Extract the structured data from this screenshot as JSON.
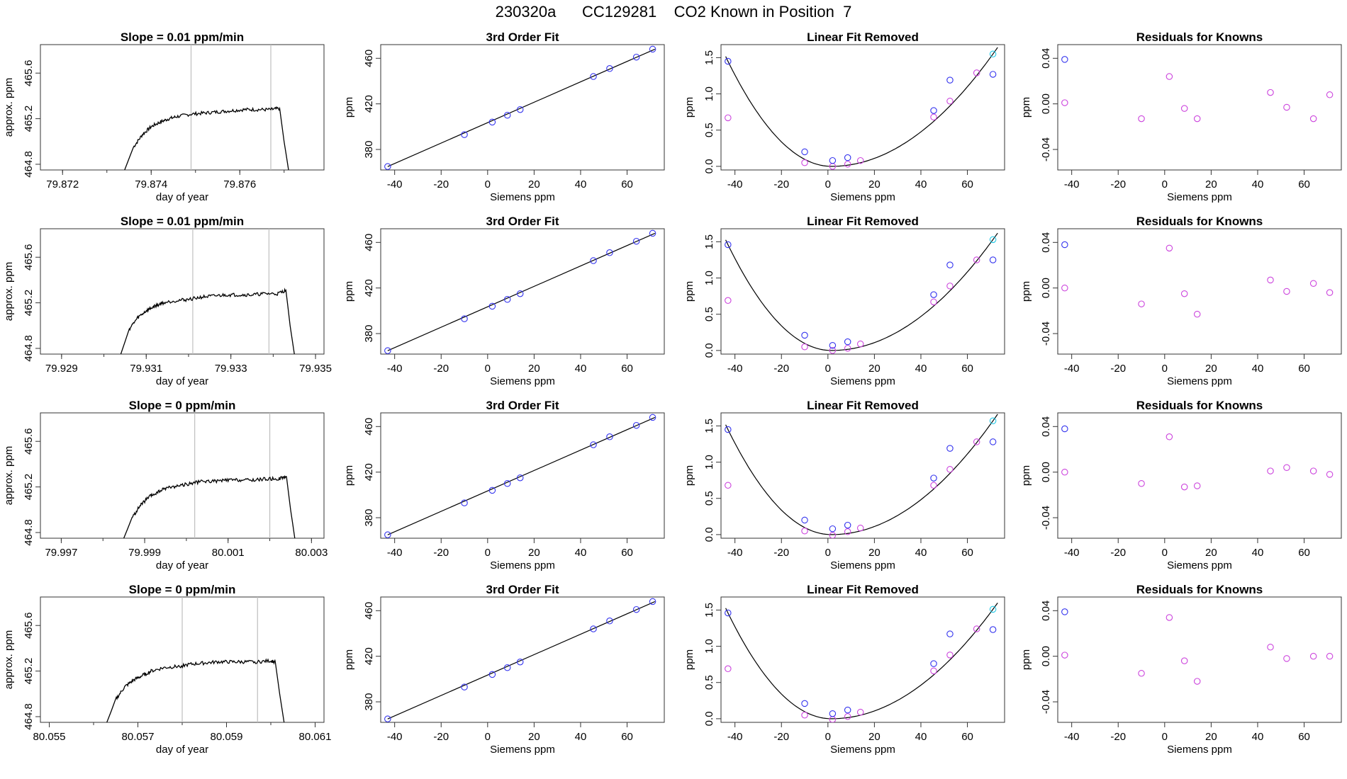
{
  "title": "230320a      CC129281    CO2 Known in Position  7",
  "colors": {
    "frame": "#333333",
    "curve": "#000000",
    "vline": "#bfbfbf",
    "blue": "#3333ee",
    "magenta": "#cc44dd",
    "cyan": "#22c8e6"
  },
  "chart_data": [
    {
      "type": "line",
      "title": "Slope =  0.01  ppm/min",
      "xlabel": "day of year",
      "ylabel": "approx. ppm",
      "xlim": [
        79.8715,
        79.8779
      ],
      "ylim": [
        464.75,
        465.85
      ],
      "xticks": [
        "79.872",
        "79.874",
        "79.876"
      ],
      "yticks": [
        "464.8",
        "465.2",
        "465.6"
      ],
      "vlines": [
        79.8749,
        79.8767
      ],
      "x": [
        79.8734,
        79.8736,
        79.8738,
        79.874,
        79.8742,
        79.8744,
        79.8746,
        79.8749,
        79.8752,
        79.8755,
        79.8758,
        79.8761,
        79.8764,
        79.8767,
        79.8769,
        79.877,
        79.8771
      ],
      "y": [
        464.75,
        464.95,
        465.06,
        465.13,
        465.17,
        465.2,
        465.22,
        465.24,
        465.25,
        465.26,
        465.27,
        465.28,
        465.28,
        465.28,
        465.29,
        465.0,
        464.75
      ]
    },
    {
      "type": "scatter",
      "title": "3rd Order Fit",
      "xlabel": "Siemens ppm",
      "ylabel": "ppm",
      "xlim": [
        -46,
        76
      ],
      "ylim": [
        362,
        472
      ],
      "xticks": [
        "-40",
        "-20",
        "0",
        "20",
        "40",
        "60"
      ],
      "yticks": [
        "380",
        "420",
        "460"
      ],
      "fit": [
        [
          -43,
          365
        ],
        [
          72,
          468
        ]
      ],
      "points": [
        [
          -43,
          365
        ],
        [
          -10,
          393
        ],
        [
          2,
          404
        ],
        [
          8.5,
          410
        ],
        [
          14,
          415
        ],
        [
          45.5,
          444
        ],
        [
          52.5,
          451
        ],
        [
          64,
          461
        ],
        [
          71,
          468
        ]
      ]
    },
    {
      "type": "scatter",
      "title": "Linear Fit Removed",
      "xlabel": "Siemens ppm",
      "ylabel": "ppm",
      "xlim": [
        -46,
        76
      ],
      "ylim": [
        -0.05,
        1.68
      ],
      "xticks": [
        "-40",
        "-20",
        "0",
        "20",
        "40",
        "60"
      ],
      "yticks": [
        "0.0",
        "0.5",
        "1.0",
        "1.5"
      ],
      "points_blue": [
        [
          -43,
          1.45
        ],
        [
          -10,
          0.2
        ],
        [
          2,
          0.08
        ],
        [
          8.5,
          0.12
        ],
        [
          45.5,
          0.77
        ],
        [
          52.5,
          1.19
        ],
        [
          71,
          1.27
        ]
      ],
      "points_magenta": [
        [
          -43,
          0.67
        ],
        [
          -10,
          0.05
        ],
        [
          2,
          0.0
        ],
        [
          8.5,
          0.03
        ],
        [
          14,
          0.08
        ],
        [
          45.5,
          0.68
        ],
        [
          52.5,
          0.9
        ],
        [
          64,
          1.29
        ]
      ],
      "points_cyan": [
        [
          71,
          1.55
        ]
      ]
    },
    {
      "type": "scatter",
      "title": "Residuals for Knowns",
      "xlabel": "Siemens ppm",
      "ylabel": "ppm",
      "xlim": [
        -46,
        76
      ],
      "ylim": [
        -0.058,
        0.052
      ],
      "xticks": [
        "-40",
        "-20",
        "0",
        "20",
        "40",
        "60"
      ],
      "yticks": [
        "-0.04",
        "0.00",
        "0.04"
      ],
      "points_blue": [
        [
          -43,
          0.039
        ]
      ],
      "points_magenta": [
        [
          -43,
          0.001
        ],
        [
          -10,
          -0.013
        ],
        [
          2,
          0.024
        ],
        [
          8.5,
          -0.004
        ],
        [
          14,
          -0.013
        ],
        [
          45.5,
          0.01
        ],
        [
          52.5,
          -0.003
        ],
        [
          64,
          -0.013
        ],
        [
          71,
          0.008
        ]
      ]
    },
    {
      "type": "line",
      "title": "Slope =  0.01  ppm/min",
      "xlabel": "day of year",
      "ylabel": "approx. ppm",
      "xlim": [
        79.9285,
        79.9352
      ],
      "ylim": [
        464.75,
        465.85
      ],
      "xticks": [
        "79.929",
        "79.931",
        "79.933",
        "79.935"
      ],
      "yticks": [
        "464.8",
        "465.2",
        "465.6"
      ],
      "vlines": [
        79.9321,
        79.9339
      ],
      "x": [
        79.9304,
        79.9306,
        79.9308,
        79.931,
        79.9312,
        79.9314,
        79.9317,
        79.932,
        79.9323,
        79.9326,
        79.9329,
        79.9332,
        79.9335,
        79.9338,
        79.9341,
        79.9343,
        79.9344,
        79.9345
      ],
      "y": [
        464.75,
        464.97,
        465.07,
        465.13,
        465.17,
        465.2,
        465.22,
        465.23,
        465.25,
        465.26,
        465.27,
        465.27,
        465.27,
        465.28,
        465.28,
        465.31,
        465.0,
        464.75
      ]
    },
    {
      "type": "scatter",
      "title": "3rd Order Fit",
      "xlabel": "Siemens ppm",
      "ylabel": "ppm",
      "xlim": [
        -46,
        76
      ],
      "ylim": [
        362,
        472
      ],
      "xticks": [
        "-40",
        "-20",
        "0",
        "20",
        "40",
        "60"
      ],
      "yticks": [
        "380",
        "420",
        "460"
      ],
      "fit": [
        [
          -43,
          365
        ],
        [
          72,
          468
        ]
      ],
      "points": [
        [
          -43,
          365
        ],
        [
          -10,
          393
        ],
        [
          2,
          404
        ],
        [
          8.5,
          410
        ],
        [
          14,
          415
        ],
        [
          45.5,
          444
        ],
        [
          52.5,
          451
        ],
        [
          64,
          461
        ],
        [
          71,
          468
        ]
      ]
    },
    {
      "type": "scatter",
      "title": "Linear Fit Removed",
      "xlabel": "Siemens ppm",
      "ylabel": "ppm",
      "xlim": [
        -46,
        76
      ],
      "ylim": [
        -0.05,
        1.68
      ],
      "xticks": [
        "-40",
        "-20",
        "0",
        "20",
        "40",
        "60"
      ],
      "yticks": [
        "0.0",
        "0.5",
        "1.0",
        "1.5"
      ],
      "points_blue": [
        [
          -43,
          1.46
        ],
        [
          -10,
          0.21
        ],
        [
          2,
          0.07
        ],
        [
          8.5,
          0.12
        ],
        [
          45.5,
          0.77
        ],
        [
          52.5,
          1.18
        ],
        [
          71,
          1.25
        ]
      ],
      "points_magenta": [
        [
          -43,
          0.69
        ],
        [
          -10,
          0.05
        ],
        [
          2,
          0.0
        ],
        [
          8.5,
          0.03
        ],
        [
          14,
          0.09
        ],
        [
          45.5,
          0.67
        ],
        [
          52.5,
          0.89
        ],
        [
          64,
          1.25
        ]
      ],
      "points_cyan": [
        [
          71,
          1.53
        ]
      ]
    },
    {
      "type": "scatter",
      "title": "Residuals for Knowns",
      "xlabel": "Siemens ppm",
      "ylabel": "ppm",
      "xlim": [
        -46,
        76
      ],
      "ylim": [
        -0.058,
        0.052
      ],
      "xticks": [
        "-40",
        "-20",
        "0",
        "20",
        "40",
        "60"
      ],
      "yticks": [
        "-0.04",
        "0.00",
        "0.04"
      ],
      "points_blue": [
        [
          -43,
          0.038
        ]
      ],
      "points_magenta": [
        [
          -43,
          0.0
        ],
        [
          -10,
          -0.014
        ],
        [
          2,
          0.035
        ],
        [
          8.5,
          -0.005
        ],
        [
          14,
          -0.023
        ],
        [
          45.5,
          0.007
        ],
        [
          52.5,
          -0.003
        ],
        [
          64,
          0.004
        ],
        [
          71,
          -0.004
        ]
      ]
    },
    {
      "type": "line",
      "title": "Slope =  0  ppm/min",
      "xlabel": "day of year",
      "ylabel": "approx. ppm",
      "xlim": [
        79.9965,
        80.0033
      ],
      "ylim": [
        464.75,
        465.85
      ],
      "xticks": [
        "79.997",
        "79.999",
        "80.001",
        "80.003"
      ],
      "yticks": [
        "464.8",
        "465.2",
        "465.6"
      ],
      "vlines": [
        80.0002,
        80.002
      ],
      "x": [
        79.9985,
        79.9987,
        79.9989,
        79.9991,
        79.9993,
        79.9995,
        79.9998,
        80.0001,
        80.0004,
        80.0007,
        80.001,
        80.0013,
        80.0016,
        80.0019,
        80.0022,
        80.0024,
        80.0025,
        80.0026
      ],
      "y": [
        464.75,
        464.93,
        465.04,
        465.11,
        465.15,
        465.19,
        465.21,
        465.23,
        465.25,
        465.25,
        465.26,
        465.26,
        465.26,
        465.27,
        465.27,
        465.29,
        465.0,
        464.75
      ]
    },
    {
      "type": "scatter",
      "title": "3rd Order Fit",
      "xlabel": "Siemens ppm",
      "ylabel": "ppm",
      "xlim": [
        -46,
        76
      ],
      "ylim": [
        362,
        472
      ],
      "xticks": [
        "-40",
        "-20",
        "0",
        "20",
        "40",
        "60"
      ],
      "yticks": [
        "380",
        "420",
        "460"
      ],
      "fit": [
        [
          -43,
          365
        ],
        [
          72,
          468
        ]
      ],
      "points": [
        [
          -43,
          365
        ],
        [
          -10,
          393
        ],
        [
          2,
          404
        ],
        [
          8.5,
          410
        ],
        [
          14,
          415
        ],
        [
          45.5,
          444
        ],
        [
          52.5,
          451
        ],
        [
          64,
          461
        ],
        [
          71,
          468
        ]
      ]
    },
    {
      "type": "scatter",
      "title": "Linear Fit Removed",
      "xlabel": "Siemens ppm",
      "ylabel": "ppm",
      "xlim": [
        -46,
        76
      ],
      "ylim": [
        -0.05,
        1.68
      ],
      "xticks": [
        "-40",
        "-20",
        "0",
        "20",
        "40",
        "60"
      ],
      "yticks": [
        "0.0",
        "0.5",
        "1.0",
        "1.5"
      ],
      "points_blue": [
        [
          -43,
          1.45
        ],
        [
          -10,
          0.2
        ],
        [
          2,
          0.08
        ],
        [
          8.5,
          0.13
        ],
        [
          45.5,
          0.78
        ],
        [
          52.5,
          1.19
        ],
        [
          71,
          1.28
        ]
      ],
      "points_magenta": [
        [
          -43,
          0.68
        ],
        [
          -10,
          0.05
        ],
        [
          2,
          -0.01
        ],
        [
          8.5,
          0.04
        ],
        [
          14,
          0.09
        ],
        [
          45.5,
          0.68
        ],
        [
          52.5,
          0.9
        ],
        [
          64,
          1.28
        ]
      ],
      "points_cyan": [
        [
          71,
          1.57
        ]
      ]
    },
    {
      "type": "scatter",
      "title": "Residuals for Knowns",
      "xlabel": "Siemens ppm",
      "ylabel": "ppm",
      "xlim": [
        -46,
        76
      ],
      "ylim": [
        -0.058,
        0.052
      ],
      "xticks": [
        "-40",
        "-20",
        "0",
        "20",
        "40",
        "60"
      ],
      "yticks": [
        "-0.04",
        "0.00",
        "0.04"
      ],
      "points_blue": [
        [
          -43,
          0.038
        ]
      ],
      "points_magenta": [
        [
          -43,
          0.0
        ],
        [
          -10,
          -0.01
        ],
        [
          2,
          0.031
        ],
        [
          8.5,
          -0.013
        ],
        [
          14,
          -0.012
        ],
        [
          45.5,
          0.001
        ],
        [
          52.5,
          0.004
        ],
        [
          64,
          0.001
        ],
        [
          71,
          -0.002
        ]
      ]
    },
    {
      "type": "line",
      "title": "Slope =  0  ppm/min",
      "xlabel": "day of year",
      "ylabel": "approx. ppm",
      "xlim": [
        80.0548,
        80.0612
      ],
      "ylim": [
        464.75,
        465.85
      ],
      "xticks": [
        "80.055",
        "80.057",
        "80.059",
        "80.061"
      ],
      "yticks": [
        "464.8",
        "465.2",
        "465.6"
      ],
      "vlines": [
        80.058,
        80.0597
      ],
      "x": [
        80.0563,
        80.0565,
        80.0567,
        80.0569,
        80.0571,
        80.0573,
        80.0576,
        80.0579,
        80.0582,
        80.0585,
        80.0588,
        80.0591,
        80.0594,
        80.0597,
        80.06,
        80.0601,
        80.0602,
        80.0603
      ],
      "y": [
        464.75,
        464.95,
        465.06,
        465.12,
        465.16,
        465.2,
        465.23,
        465.24,
        465.26,
        465.27,
        465.28,
        465.28,
        465.28,
        465.28,
        465.29,
        465.28,
        465.0,
        464.75
      ]
    },
    {
      "type": "scatter",
      "title": "3rd Order Fit",
      "xlabel": "Siemens ppm",
      "ylabel": "ppm",
      "xlim": [
        -46,
        76
      ],
      "ylim": [
        362,
        472
      ],
      "xticks": [
        "-40",
        "-20",
        "0",
        "20",
        "40",
        "60"
      ],
      "yticks": [
        "380",
        "420",
        "460"
      ],
      "fit": [
        [
          -43,
          365
        ],
        [
          72,
          468
        ]
      ],
      "points": [
        [
          -43,
          365
        ],
        [
          -10,
          393
        ],
        [
          2,
          404
        ],
        [
          8.5,
          410
        ],
        [
          14,
          415
        ],
        [
          45.5,
          444
        ],
        [
          52.5,
          451
        ],
        [
          64,
          461
        ],
        [
          71,
          468
        ]
      ]
    },
    {
      "type": "scatter",
      "title": "Linear Fit Removed",
      "xlabel": "Siemens ppm",
      "ylabel": "ppm",
      "xlim": [
        -46,
        76
      ],
      "ylim": [
        -0.05,
        1.68
      ],
      "xticks": [
        "-40",
        "-20",
        "0",
        "20",
        "40",
        "60"
      ],
      "yticks": [
        "0.0",
        "0.5",
        "1.0",
        "1.5"
      ],
      "points_blue": [
        [
          -43,
          1.46
        ],
        [
          -10,
          0.21
        ],
        [
          2,
          0.07
        ],
        [
          8.5,
          0.12
        ],
        [
          45.5,
          0.76
        ],
        [
          52.5,
          1.17
        ],
        [
          71,
          1.23
        ]
      ],
      "points_magenta": [
        [
          -43,
          0.69
        ],
        [
          -10,
          0.05
        ],
        [
          2,
          -0.01
        ],
        [
          8.5,
          0.03
        ],
        [
          14,
          0.09
        ],
        [
          45.5,
          0.66
        ],
        [
          52.5,
          0.88
        ],
        [
          64,
          1.24
        ]
      ],
      "points_cyan": [
        [
          71,
          1.51
        ]
      ]
    },
    {
      "type": "scatter",
      "title": "Residuals for Knowns",
      "xlabel": "Siemens ppm",
      "ylabel": "ppm",
      "xlim": [
        -46,
        76
      ],
      "ylim": [
        -0.058,
        0.052
      ],
      "xticks": [
        "-40",
        "-20",
        "0",
        "20",
        "40",
        "60"
      ],
      "yticks": [
        "-0.04",
        "0.00",
        "0.04"
      ],
      "points_blue": [
        [
          -43,
          0.039
        ]
      ],
      "points_magenta": [
        [
          -43,
          0.001
        ],
        [
          -10,
          -0.015
        ],
        [
          2,
          0.034
        ],
        [
          8.5,
          -0.004
        ],
        [
          14,
          -0.022
        ],
        [
          45.5,
          0.008
        ],
        [
          52.5,
          -0.002
        ],
        [
          64,
          0.0
        ],
        [
          71,
          0.0
        ]
      ]
    }
  ]
}
